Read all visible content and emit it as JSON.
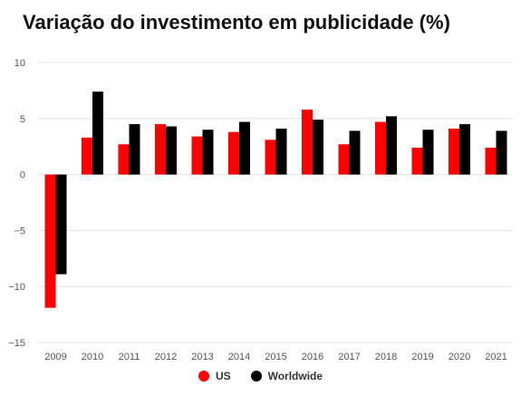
{
  "title": "Variação do investimento em publicidade (%)",
  "chart_data": {
    "type": "bar",
    "categories": [
      "2009",
      "2010",
      "2011",
      "2012",
      "2013",
      "2014",
      "2015",
      "2016",
      "2017",
      "2018",
      "2019",
      "2020",
      "2021"
    ],
    "series": [
      {
        "name": "US",
        "color": "#ff0000",
        "values": [
          -11.9,
          3.3,
          2.7,
          4.5,
          3.4,
          3.8,
          3.1,
          5.8,
          2.7,
          4.7,
          2.4,
          4.1,
          2.4
        ]
      },
      {
        "name": "Worldwide",
        "color": "#000000",
        "values": [
          -8.9,
          7.4,
          4.5,
          4.3,
          4.0,
          4.7,
          4.1,
          4.9,
          3.9,
          5.2,
          4.0,
          4.5,
          3.9
        ]
      }
    ],
    "ylim": [
      -15,
      10
    ],
    "yticks": [
      10,
      5,
      0,
      -5,
      -10,
      -15
    ],
    "ytick_labels": [
      "10",
      "5",
      "0",
      "−5",
      "−10",
      "−15"
    ],
    "grid": true,
    "legend_position": "bottom-center"
  }
}
